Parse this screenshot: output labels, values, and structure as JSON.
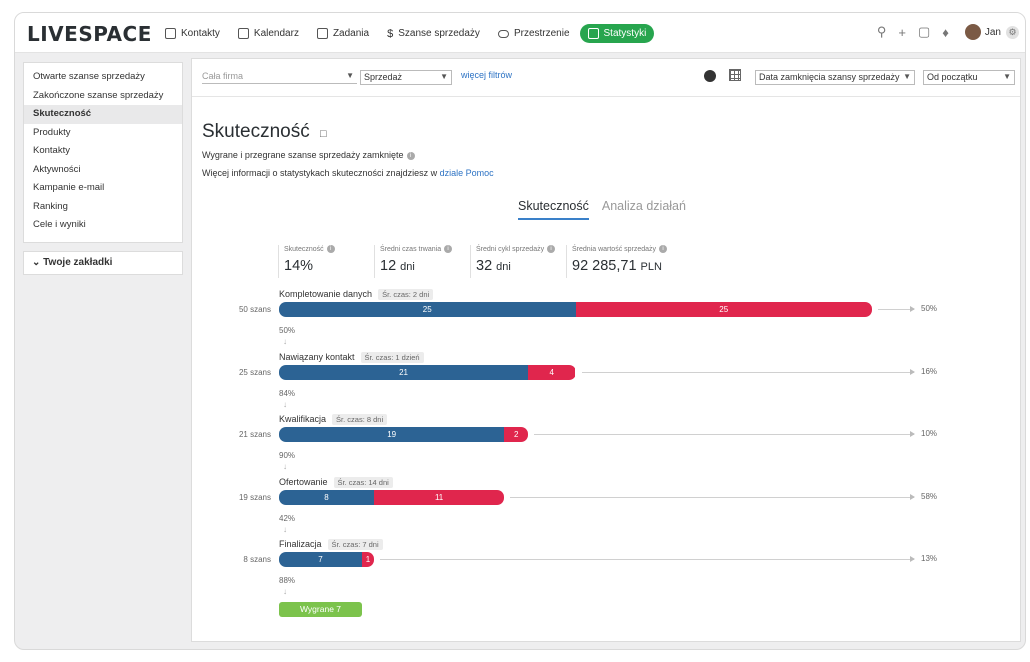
{
  "app": {
    "logo": "LIVESPACE"
  },
  "nav": [
    {
      "label": "Kontakty",
      "icon": "contact-card-icon"
    },
    {
      "label": "Kalendarz",
      "icon": "calendar-icon"
    },
    {
      "label": "Zadania",
      "icon": "checkbox-icon"
    },
    {
      "label": "Szanse sprzedaży",
      "icon": "dollar-icon"
    },
    {
      "label": "Przestrzenie",
      "icon": "cloud-icon"
    },
    {
      "label": "Statystyki",
      "icon": "bar-chart-icon",
      "active": true
    }
  ],
  "user": {
    "name": "Jan"
  },
  "sidebar": {
    "items": [
      {
        "label": "Otwarte szanse sprzedaży"
      },
      {
        "label": "Zakończone szanse sprzedaży"
      },
      {
        "label": "Skuteczność",
        "active": true
      },
      {
        "label": "Produkty"
      },
      {
        "label": "Kontakty"
      },
      {
        "label": "Aktywności"
      },
      {
        "label": "Kampanie e-mail"
      },
      {
        "label": "Ranking"
      },
      {
        "label": "Cele i wyniki"
      }
    ],
    "bookmarks_label": "Twoje zakładki"
  },
  "filters": {
    "company": "Cała firma",
    "type": "Sprzedaż",
    "more": "więcej filtrów",
    "date_field": "Data zamknięcia szansy sprzedaży",
    "period": "Od początku"
  },
  "page": {
    "title": "Skuteczność",
    "subtitle": "Wygrane i przegrane szanse sprzedaży zamknięte",
    "help_prefix": "Więcej informacji o statystykach skuteczności znajdziesz w",
    "help_link": "dziale Pomoc"
  },
  "tabs": [
    {
      "label": "Skuteczność",
      "active": true
    },
    {
      "label": "Analiza działań"
    }
  ],
  "kpis": [
    {
      "label": "Skuteczność",
      "value": "14%",
      "unit": ""
    },
    {
      "label": "Średni czas trwania",
      "value": "12",
      "unit": "dni"
    },
    {
      "label": "Średni cykl sprzedaży",
      "value": "32",
      "unit": "dni"
    },
    {
      "label": "Średnia wartość sprzedaży",
      "value": "92 285,71",
      "unit": "PLN"
    }
  ],
  "colors": {
    "won": "#2c6394",
    "lost": "#e0264d",
    "accent": "#27a54e",
    "won_pill": "#7cc34c"
  },
  "funnel": {
    "stages": [
      {
        "name": "Kompletowanie danych",
        "avg": "Śr. czas: 2 dni",
        "count": "50 szans",
        "total": 50,
        "continued": 25,
        "lost": 25,
        "loss_pct": "50%",
        "conv_pct": "50%"
      },
      {
        "name": "Nawiązany kontakt",
        "avg": "Śr. czas: 1 dzień",
        "count": "25 szans",
        "total": 25,
        "continued": 21,
        "lost": 4,
        "loss_pct": "16%",
        "conv_pct": "84%"
      },
      {
        "name": "Kwalifikacja",
        "avg": "Śr. czas: 8 dni",
        "count": "21 szans",
        "total": 21,
        "continued": 19,
        "lost": 2,
        "loss_pct": "10%",
        "conv_pct": "90%"
      },
      {
        "name": "Ofertowanie",
        "avg": "Śr. czas: 14 dni",
        "count": "19 szans",
        "total": 19,
        "continued": 8,
        "lost": 11,
        "loss_pct": "58%",
        "conv_pct": "42%"
      },
      {
        "name": "Finalizacja",
        "avg": "Śr. czas: 7 dni",
        "count": "8 szans",
        "total": 8,
        "continued": 7,
        "lost": 1,
        "loss_pct": "13%",
        "conv_pct": "88%"
      }
    ],
    "won_label": "Wygrane 7"
  }
}
